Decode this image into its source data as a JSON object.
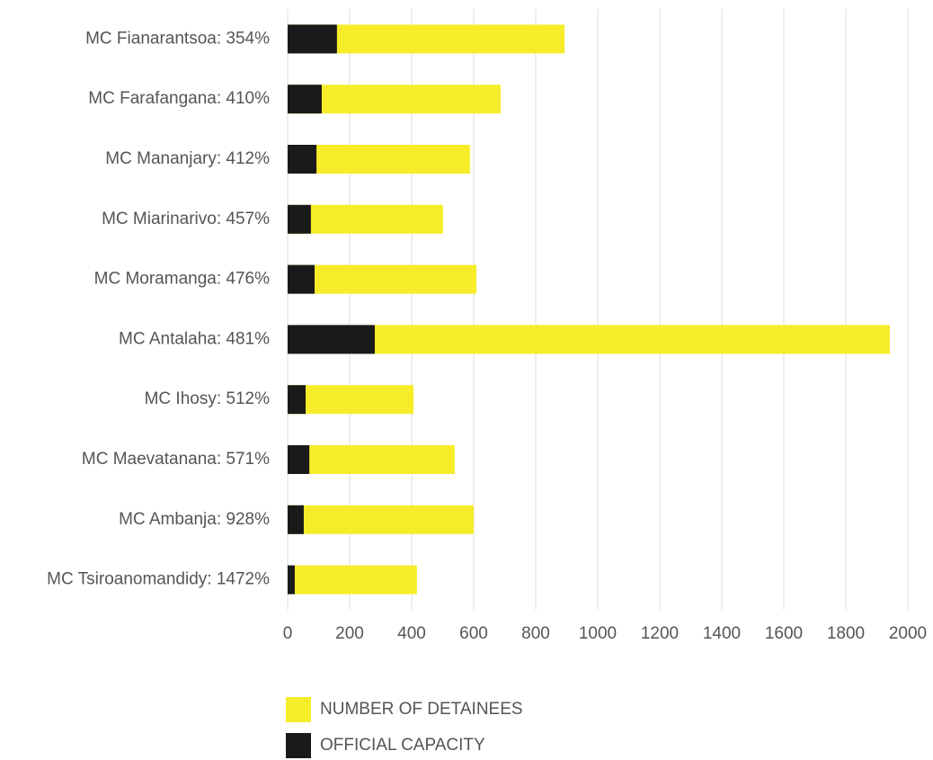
{
  "chart_data": {
    "type": "bar",
    "orientation": "horizontal",
    "categories": [
      "MC Fianarantsoa: 354%",
      "MC Farafangana: 410%",
      "MC Mananjary: 412%",
      "MC Miarinarivo: 457%",
      "MC Moramanga: 476%",
      "MC Antalaha: 481%",
      "MC Ihosy: 512%",
      "MC Maevatanana: 571%",
      "MC Ambanja: 928%",
      "MC Tsiroanomandidy: 1472%"
    ],
    "series": [
      {
        "name": "NUMBER OF DETAINEES",
        "color": "#f7ec2a",
        "values": [
          893,
          687,
          588,
          501,
          609,
          1942,
          406,
          539,
          600,
          417
        ]
      },
      {
        "name": "OFFICIAL CAPACITY",
        "color": "#1a1a1a",
        "values": [
          159,
          110,
          93,
          75,
          87,
          281,
          58,
          70,
          52,
          23
        ]
      }
    ],
    "xlim": [
      0,
      2000
    ],
    "xticks": [
      0,
      200,
      400,
      600,
      800,
      1000,
      1200,
      1400,
      1600,
      1800,
      2000
    ],
    "grid": true
  }
}
